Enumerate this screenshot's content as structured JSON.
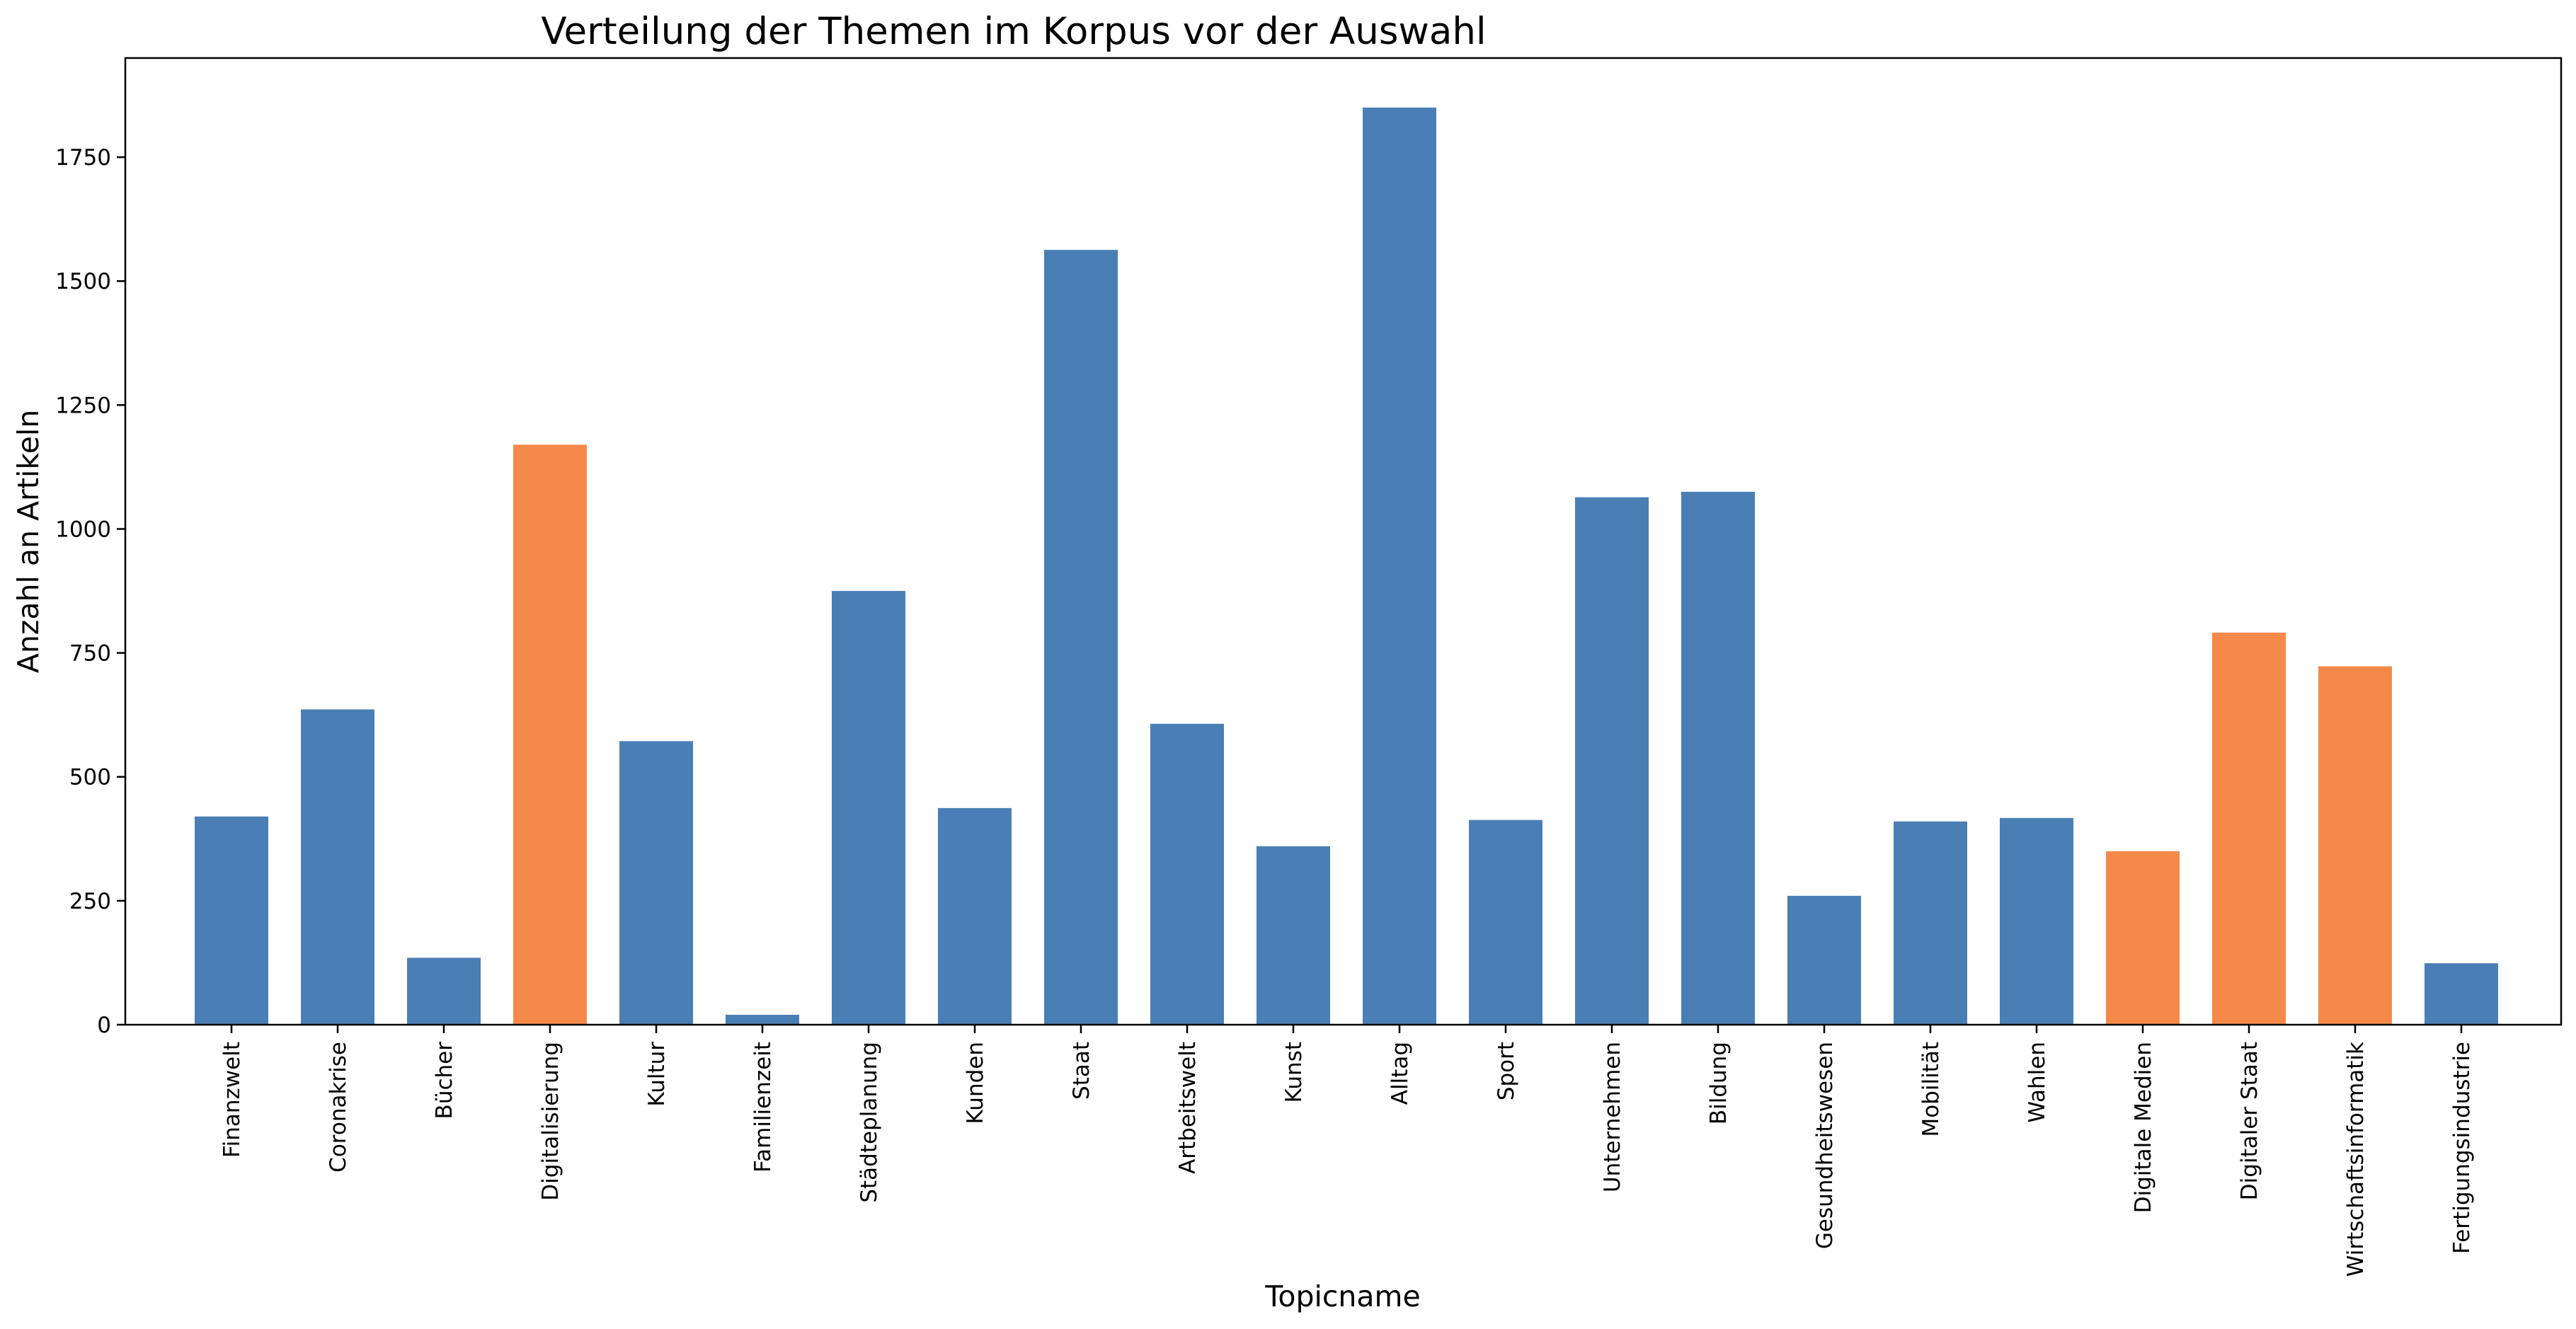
{
  "chart_data": {
    "type": "bar",
    "title": "Verteilung der Themen im Korpus vor der Auswahl",
    "xlabel": "Topicname",
    "ylabel": "Anzahl an Artikeln",
    "ylim": [
      0,
      1950
    ],
    "yticks": [
      0,
      250,
      500,
      750,
      1000,
      1250,
      1500,
      1750
    ],
    "grid": false,
    "categories": [
      "Finanzwelt",
      "Coronakrise",
      "Bücher",
      "Digitalisierung",
      "Kultur",
      "Familienzeit",
      "Städteplanung",
      "Kunden",
      "Staat",
      "Artbeitswelt",
      "Kunst",
      "Alltag",
      "Sport",
      "Unternehmen",
      "Bildung",
      "Gesundheitswesen",
      "Mobilität",
      "Wahlen",
      "Digitale Medien",
      "Digitaler Staat",
      "Wirtschaftsinformatik",
      "Fertigungsindustrie"
    ],
    "values": [
      420,
      636,
      135,
      1170,
      572,
      20,
      875,
      437,
      1563,
      607,
      360,
      1850,
      413,
      1064,
      1075,
      260,
      410,
      417,
      350,
      791,
      723,
      124
    ],
    "highlighted": [
      false,
      false,
      false,
      true,
      false,
      false,
      false,
      false,
      false,
      false,
      false,
      false,
      false,
      false,
      false,
      false,
      false,
      false,
      true,
      true,
      true,
      false
    ],
    "colors": {
      "default": "#4a7fb5",
      "highlight": "#f5894a"
    }
  }
}
